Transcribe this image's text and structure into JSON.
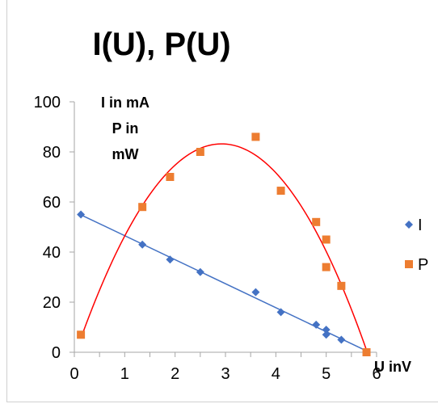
{
  "chart_data": {
    "type": "scatter",
    "title": "I(U), P(U)",
    "ylabel_lines": [
      "I in mA",
      "P in",
      "mW"
    ],
    "xlabel": "U inV",
    "xlim": [
      0,
      6
    ],
    "ylim": [
      0,
      100
    ],
    "xticks": [
      0,
      1,
      2,
      3,
      4,
      5,
      6
    ],
    "yticks": [
      0,
      20,
      40,
      60,
      80,
      100
    ],
    "x_minor_step": 0.5,
    "grid": false,
    "legend_position": "right",
    "series": [
      {
        "name": "I",
        "marker": "diamond",
        "color": "#4472C4",
        "trendline": "linear",
        "x": [
          0.13,
          1.35,
          1.9,
          2.5,
          3.6,
          4.1,
          4.8,
          5.0,
          5.0,
          5.3,
          5.8
        ],
        "y": [
          55,
          43,
          37,
          32,
          24,
          16,
          11,
          9,
          7,
          5,
          0
        ]
      },
      {
        "name": "P",
        "marker": "square",
        "color": "#ED7D31",
        "trendline": "polynomial",
        "trendline_color": "#FF0000",
        "x": [
          0.13,
          1.35,
          1.9,
          2.5,
          3.6,
          4.1,
          4.8,
          5.0,
          5.0,
          5.3,
          5.8
        ],
        "y": [
          7,
          58,
          70,
          80,
          86,
          64.5,
          52,
          45,
          34,
          26.5,
          0
        ]
      }
    ]
  }
}
